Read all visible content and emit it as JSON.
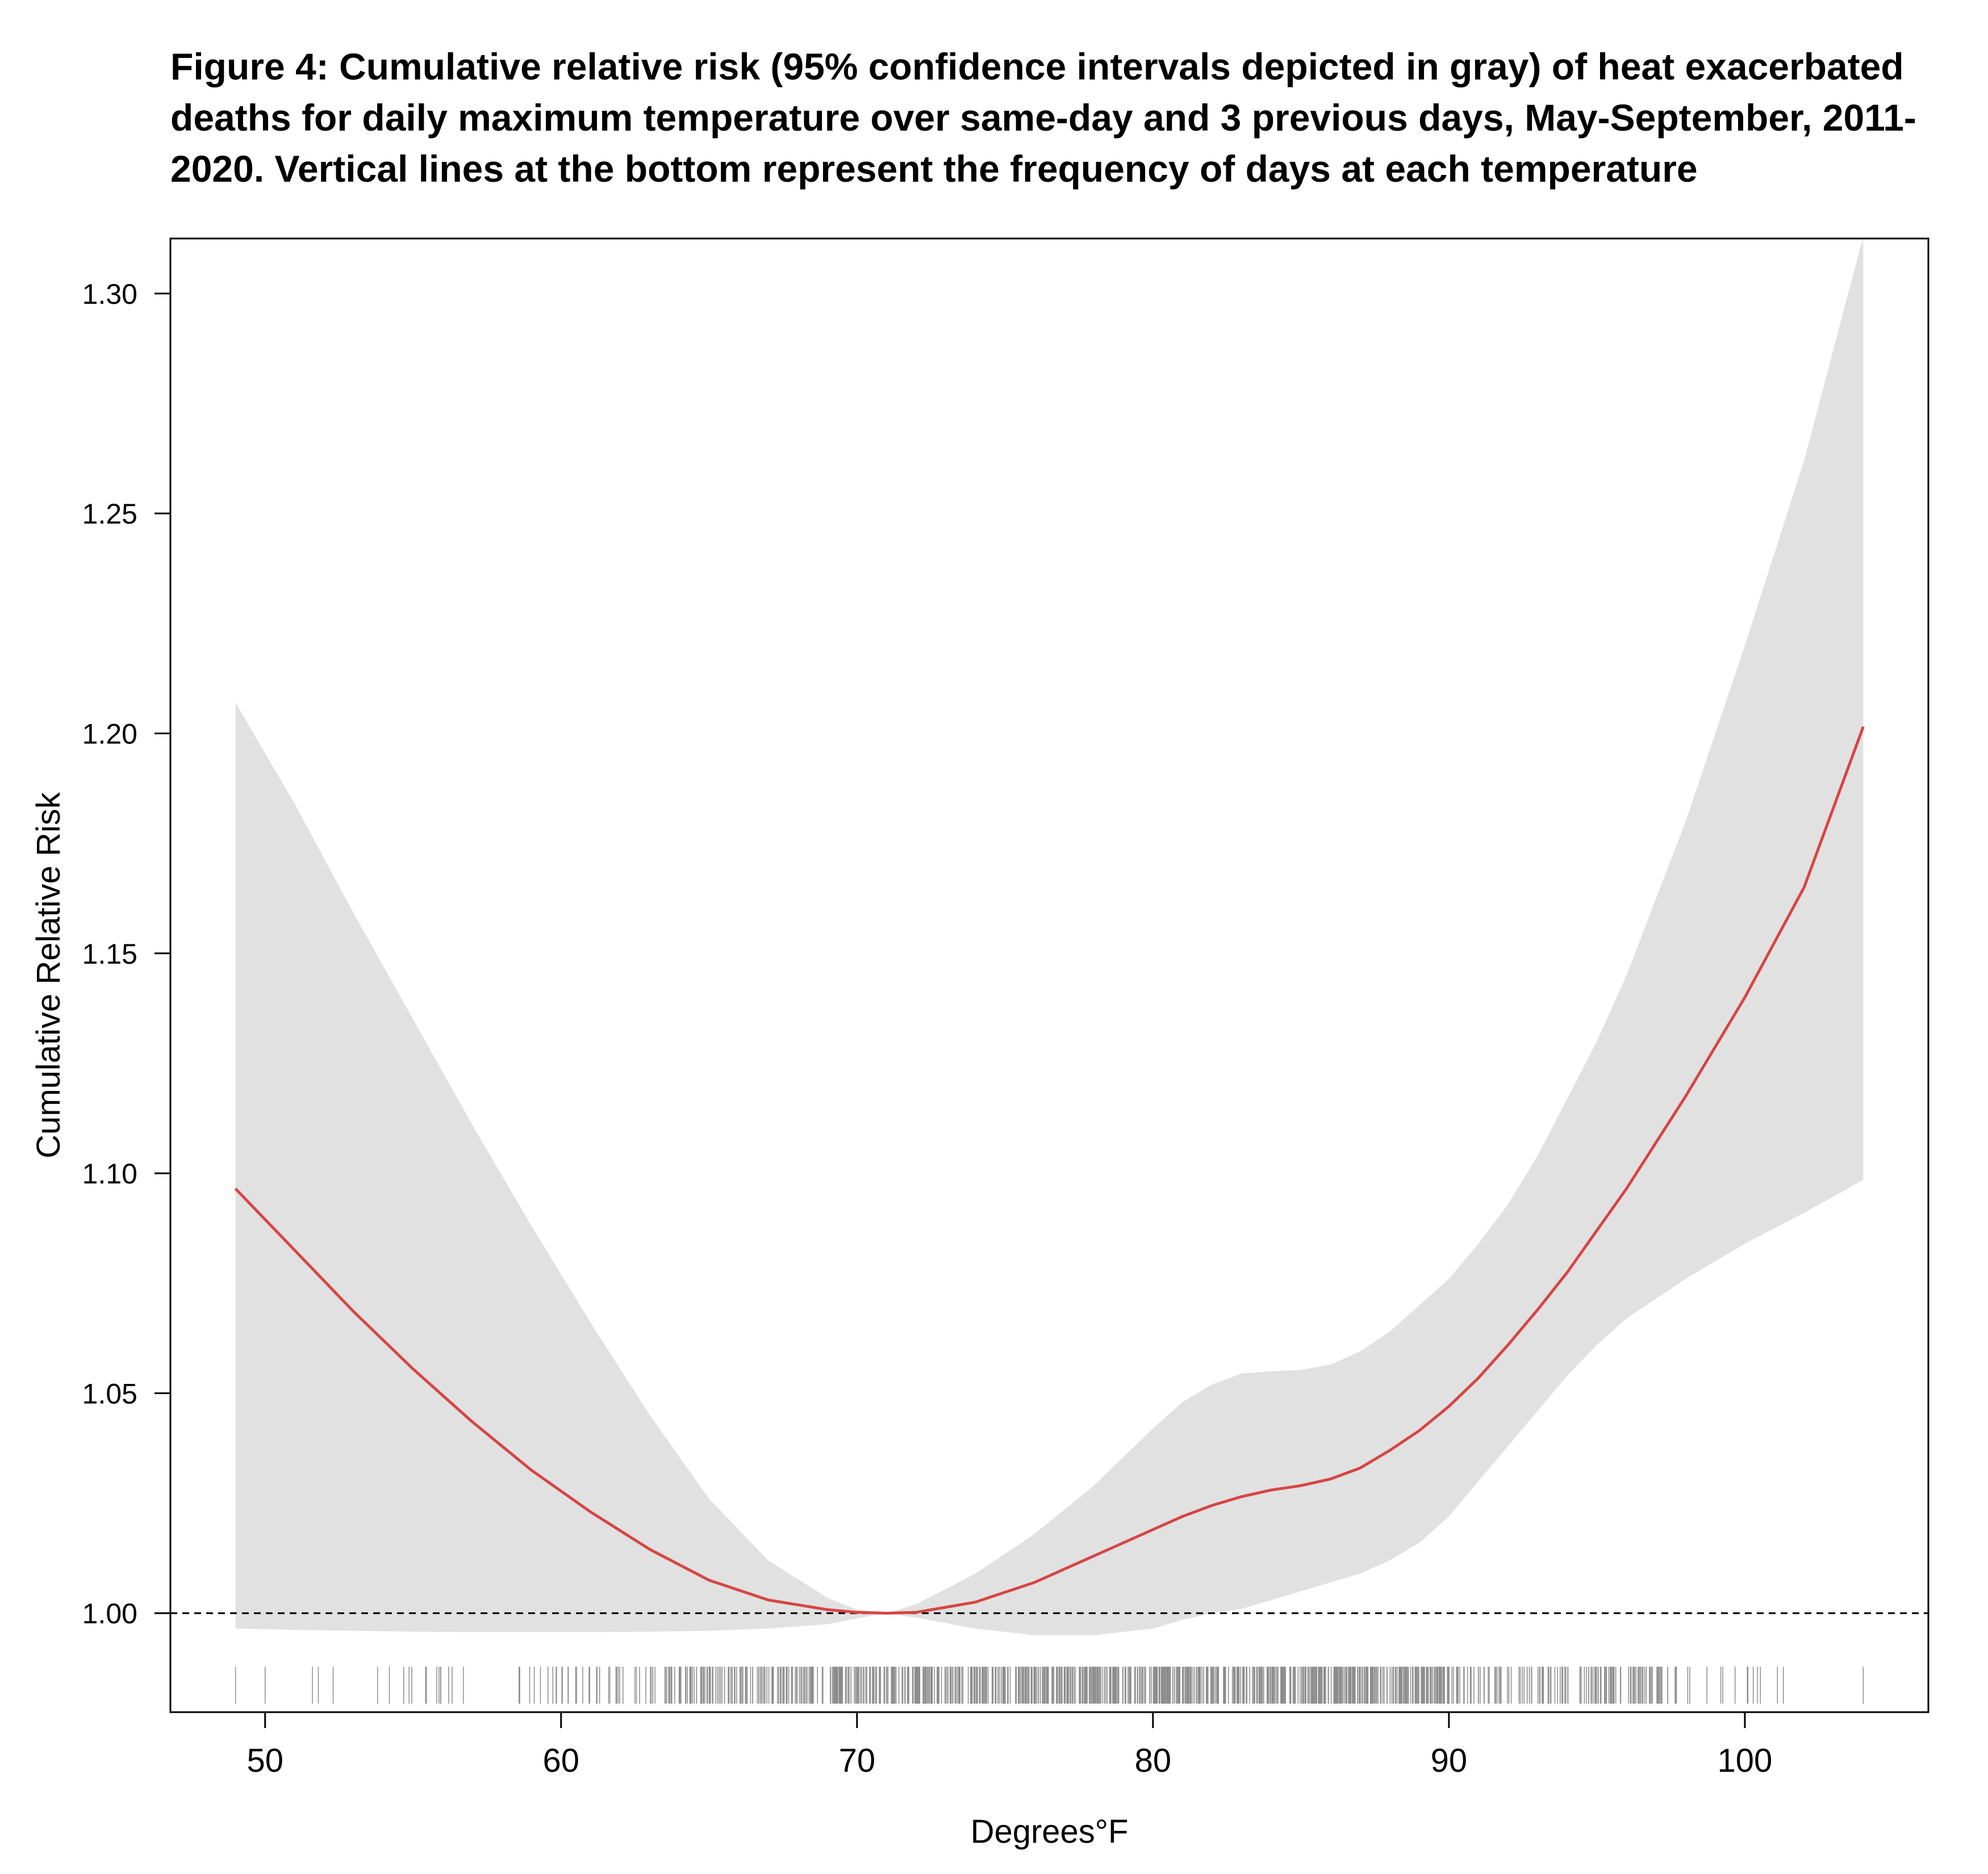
{
  "chart_data": {
    "type": "line",
    "title": "Figure 4: Cumulative relative risk (95% confidence intervals depicted in gray) of heat exacerbated deaths for daily maximum temperature over same-day and 3 previous days, May-September, 2011-2020. Vertical lines at the bottom represent the frequency of days at each temperature",
    "xlabel": "Degrees°F",
    "ylabel": "Cumulative Relative Risk",
    "xlim": [
      46.8,
      106.2
    ],
    "ylim": [
      0.9775,
      1.3125
    ],
    "xticks": [
      50,
      60,
      70,
      80,
      90,
      100
    ],
    "yticks": [
      "1.00",
      "1.05",
      "1.10",
      "1.15",
      "1.20",
      "1.25",
      "1.30"
    ],
    "reference_line": 1.0,
    "grid": false,
    "colors": {
      "line": "#d64545",
      "band": "#e1e1e1",
      "rug": "#8c8c8c"
    },
    "x": [
      49,
      51,
      53,
      55,
      57,
      59,
      61,
      63,
      65,
      67,
      69,
      70,
      71,
      72,
      74,
      76,
      78,
      80,
      81,
      82,
      83,
      84,
      85,
      86,
      87,
      88,
      89,
      90,
      91,
      92,
      93,
      94,
      95,
      96,
      98,
      100,
      102,
      104
    ],
    "series": [
      {
        "role": "estimate",
        "values": [
          1.0965,
          1.0825,
          1.0685,
          1.0555,
          1.0435,
          1.0325,
          1.023,
          1.0145,
          1.0075,
          1.003,
          1.0008,
          1.0002,
          1.0,
          1.0002,
          1.0025,
          1.007,
          1.013,
          1.019,
          1.022,
          1.0245,
          1.0265,
          1.028,
          1.029,
          1.0305,
          1.033,
          1.037,
          1.0415,
          1.047,
          1.0535,
          1.061,
          1.069,
          1.0775,
          1.087,
          1.0965,
          1.1175,
          1.14,
          1.165,
          1.2015
        ]
      },
      {
        "role": "upper",
        "values": [
          1.207,
          1.184,
          1.159,
          1.135,
          1.111,
          1.088,
          1.066,
          1.045,
          1.026,
          1.012,
          1.0035,
          1.0008,
          1.0,
          1.002,
          1.009,
          1.018,
          1.029,
          1.042,
          1.048,
          1.052,
          1.0545,
          1.055,
          1.0553,
          1.0565,
          1.0595,
          1.064,
          1.07,
          1.076,
          1.084,
          1.093,
          1.104,
          1.117,
          1.13,
          1.145,
          1.18,
          1.22,
          1.262,
          1.313
        ]
      },
      {
        "role": "lower",
        "values": [
          0.9965,
          0.9962,
          0.996,
          0.9958,
          0.9957,
          0.9957,
          0.9957,
          0.9958,
          0.996,
          0.9965,
          0.9975,
          0.9988,
          1.0,
          0.999,
          0.9965,
          0.995,
          0.995,
          0.9965,
          0.9985,
          1.0,
          1.001,
          1.003,
          1.005,
          1.007,
          1.009,
          1.012,
          1.016,
          1.022,
          1.03,
          1.038,
          1.046,
          1.054,
          1.061,
          1.067,
          1.076,
          1.084,
          1.091,
          1.0985
        ]
      }
    ]
  }
}
